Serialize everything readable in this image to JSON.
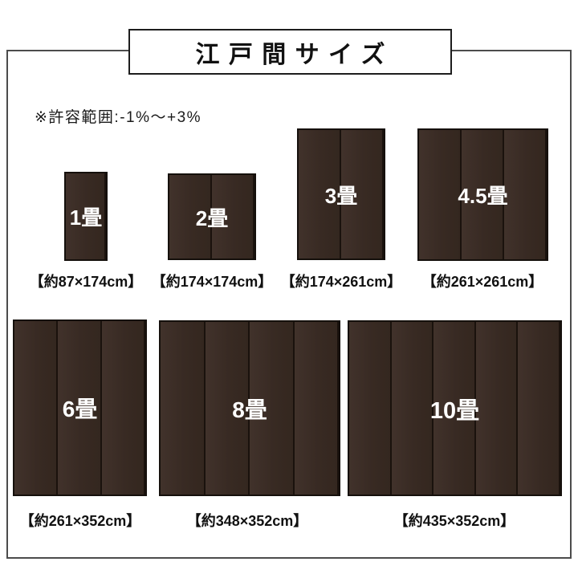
{
  "title": "江戸間サイズ",
  "note": "※許容範囲:-1%〜+3%",
  "colors": {
    "rug_fill": "#3a2c26",
    "rug_border": "#15100c",
    "panel_divider": "#1a120d",
    "frame_border": "#4c4c4c",
    "title_border": "#1d1d1d",
    "label_text": "#ffffff",
    "caption_text": "#111111"
  },
  "sizes": [
    {
      "label": "1畳",
      "dims": "【約87×174cm】",
      "panels": 1
    },
    {
      "label": "2畳",
      "dims": "【約174×174cm】",
      "panels": 2
    },
    {
      "label": "3畳",
      "dims": "【約174×261cm】",
      "panels": 2
    },
    {
      "label": "4.5畳",
      "dims": "【約261×261cm】",
      "panels": 3
    },
    {
      "label": "6畳",
      "dims": "【約261×352cm】",
      "panels": 3
    },
    {
      "label": "8畳",
      "dims": "【約348×352cm】",
      "panels": 4
    },
    {
      "label": "10畳",
      "dims": "【約435×352cm】",
      "panels": 5
    }
  ]
}
